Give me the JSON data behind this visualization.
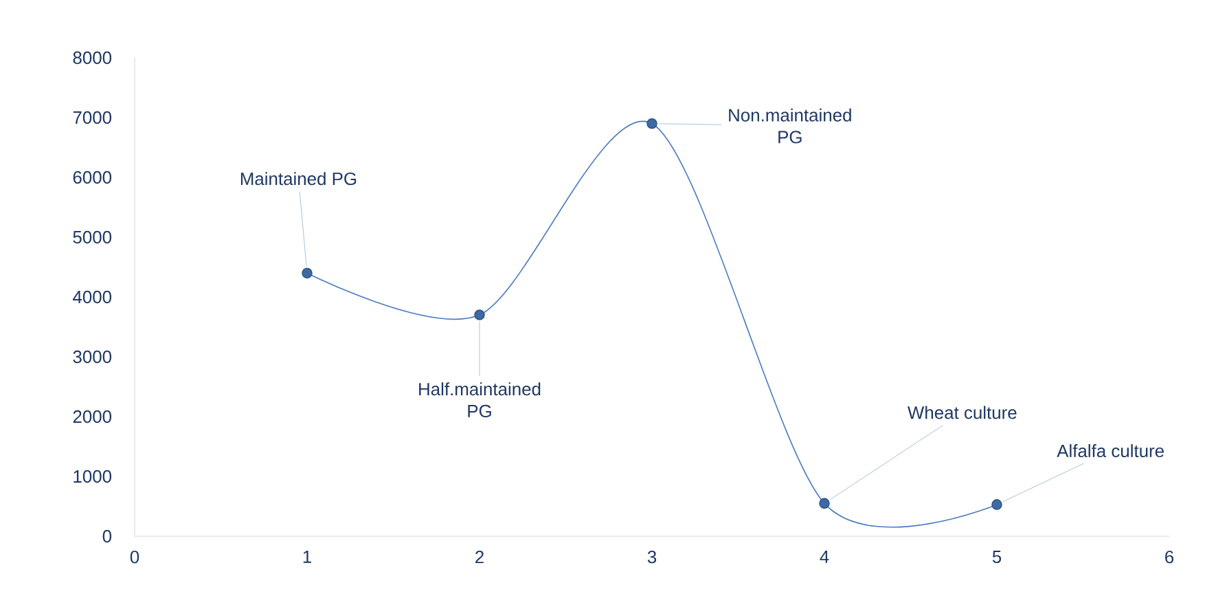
{
  "chart_data": {
    "type": "line",
    "x": [
      1,
      2,
      3,
      4,
      5
    ],
    "values": [
      4400,
      3700,
      6900,
      550,
      530
    ],
    "color": "#4a7bbf",
    "marker": "circle",
    "line_style": "solid",
    "grid": false,
    "xlim": [
      0,
      6
    ],
    "ylim": [
      0,
      8000
    ],
    "xticks": [
      0,
      1,
      2,
      3,
      4,
      5,
      6
    ],
    "yticks": [
      0,
      1000,
      2000,
      3000,
      4000,
      5000,
      6000,
      7000,
      8000
    ],
    "annotations": [
      {
        "text": "Maintained PG",
        "x": 1,
        "y": 4400
      },
      {
        "text": "Half.maintained PG",
        "x": 2,
        "y": 3700
      },
      {
        "text": "Non.maintained PG",
        "x": 3,
        "y": 6900
      },
      {
        "text": "Wheat culture",
        "x": 4,
        "y": 550
      },
      {
        "text": "Alfalfa culture",
        "x": 5,
        "y": 530
      }
    ]
  }
}
